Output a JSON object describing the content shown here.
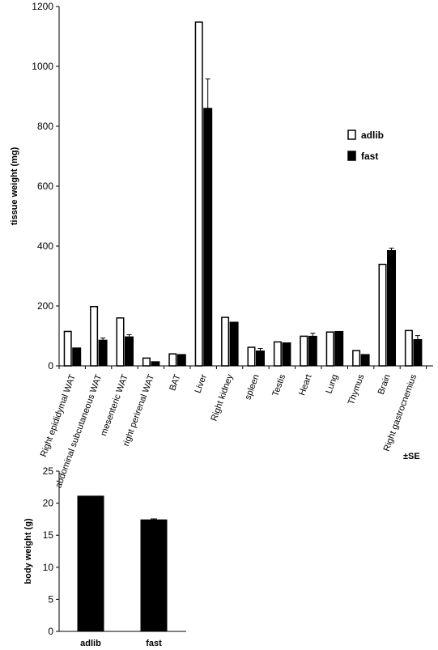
{
  "chart_data": [
    {
      "type": "bar",
      "title": "",
      "xlabel": "",
      "ylabel": "tissue weight (mg)",
      "ylim": [
        0,
        1200
      ],
      "yticks": [
        0,
        200,
        400,
        600,
        800,
        1000,
        1200
      ],
      "grid": false,
      "legend_position": "right",
      "note": "±SE",
      "categories": [
        "Right epididymal WAT",
        "abdominal subcutaneous WAT",
        "mesenteric WAT",
        "right perirenal WAT",
        "BAT",
        "Liver",
        "Right kidney",
        "spleen",
        "Testis",
        "Heart",
        "Lung",
        "Thymus",
        "Brain",
        "Right gastrocnemius"
      ],
      "series": [
        {
          "name": "adlib",
          "color": "#ffffff",
          "values": [
            115,
            198,
            160,
            26,
            40,
            1148,
            162,
            62,
            80,
            99,
            113,
            51,
            339,
            118
          ],
          "errors": [
            0,
            0,
            0,
            0,
            0,
            0,
            0,
            0,
            0,
            0,
            0,
            0,
            0,
            0
          ]
        },
        {
          "name": "fast",
          "color": "#000000",
          "values": [
            60,
            86,
            97,
            14,
            38,
            860,
            146,
            50,
            77,
            99,
            115,
            38,
            385,
            88
          ],
          "errors": [
            0,
            7,
            7,
            0,
            0,
            98,
            0,
            8,
            0,
            10,
            0,
            0,
            8,
            13
          ]
        }
      ]
    },
    {
      "type": "bar",
      "title": "",
      "xlabel": "",
      "ylabel": "body weight (g)",
      "ylim": [
        0,
        25
      ],
      "yticks": [
        0,
        5,
        10,
        15,
        20,
        25
      ],
      "grid": false,
      "categories": [
        "adlib",
        "fast"
      ],
      "values": [
        21.1,
        17.4
      ],
      "errors": [
        0,
        0.15
      ],
      "color": "#000000"
    }
  ]
}
